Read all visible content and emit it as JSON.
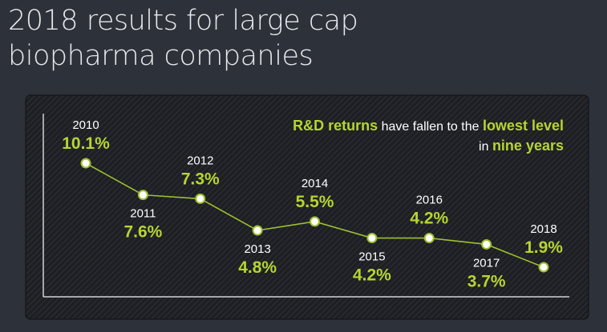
{
  "title": "2018 results for large cap biopharma companies",
  "annotation": {
    "line1_highlight": "R&D returns",
    "line1_rest": " have fallen to the ",
    "line1_highlight2": "lowest level",
    "line2_rest": "in ",
    "line2_highlight": "nine years"
  },
  "colors": {
    "background": "#2d3139",
    "panel": "#1c1e22",
    "accent": "#b6d531",
    "line": "#9fbf2e",
    "text": "#ffffff"
  },
  "chart_data": {
    "type": "line",
    "x": [
      "2010",
      "2011",
      "2012",
      "2013",
      "2014",
      "2015",
      "2016",
      "2017",
      "2018"
    ],
    "values": [
      10.1,
      7.6,
      7.3,
      4.8,
      5.5,
      4.2,
      4.2,
      3.7,
      1.9
    ],
    "value_labels": [
      "10.1%",
      "7.6%",
      "7.3%",
      "4.8%",
      "5.5%",
      "4.2%",
      "4.2%",
      "3.7%",
      "1.9%"
    ],
    "label_position": [
      "above",
      "below",
      "above",
      "below",
      "above",
      "below",
      "above",
      "below",
      "above"
    ],
    "unit": "%",
    "ylim": [
      0,
      12
    ],
    "grid": false,
    "axes": "left and bottom lines, no ticks"
  }
}
